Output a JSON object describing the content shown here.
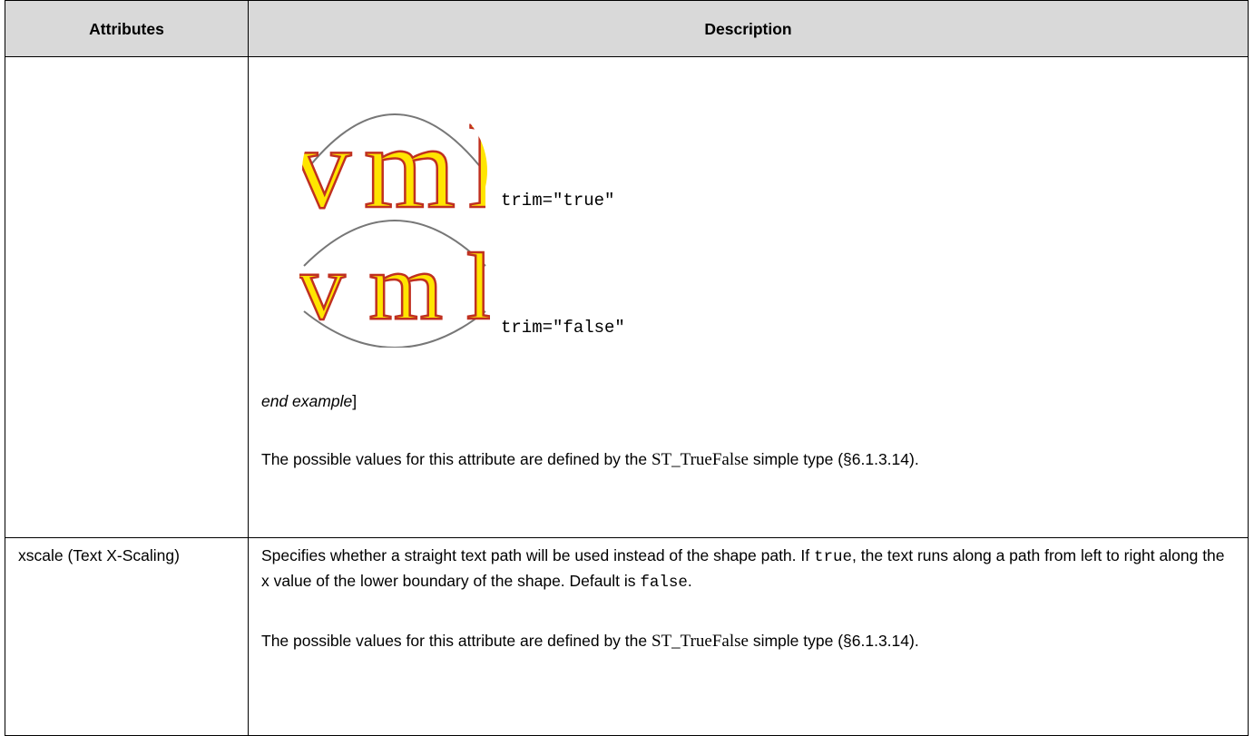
{
  "table": {
    "headers": [
      "Attributes",
      "Description"
    ],
    "rows": [
      {
        "examples": [
          {
            "caption": "trim=\"true\""
          },
          {
            "caption": "trim=\"false\""
          }
        ],
        "end_example": [
          "end example",
          "]"
        ],
        "values_note": [
          "The possible values for this attribute are defined by the ",
          "ST_TrueFalse",
          " simple type (§6.1.3.14)."
        ]
      },
      {
        "attribute": "xscale (Text X-Scaling)",
        "description": [
          "Specifies whether a straight text path will be used instead of the shape path.  If ",
          "true",
          ", the text runs along a path from left to right along the x value of the lower boundary of the shape.  Default is ",
          "false",
          "."
        ],
        "values_note": [
          "The possible values for this attribute are defined by the ",
          "ST_TrueFalse",
          " simple type (§6.1.3.14)."
        ]
      }
    ]
  }
}
